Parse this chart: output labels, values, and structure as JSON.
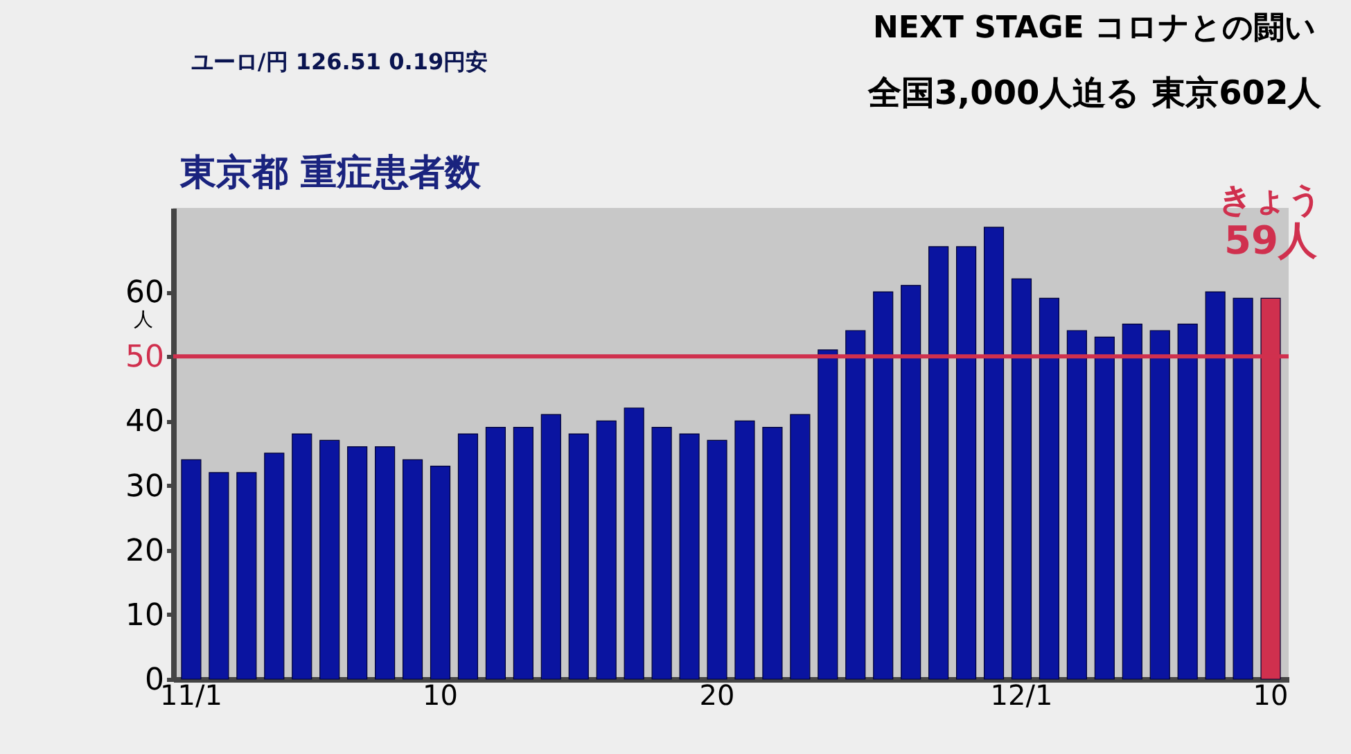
{
  "chart_data": {
    "type": "bar",
    "title": "東京都 重症患者数",
    "ylabel": "人",
    "categories": [
      "11/1",
      null,
      null,
      null,
      null,
      null,
      null,
      null,
      null,
      "10",
      null,
      null,
      null,
      null,
      null,
      null,
      null,
      null,
      null,
      "20",
      null,
      null,
      null,
      null,
      null,
      null,
      null,
      null,
      null,
      null,
      "12/1",
      null,
      null,
      null,
      null,
      null,
      null,
      null,
      null,
      "10"
    ],
    "values": [
      34,
      32,
      32,
      35,
      38,
      37,
      36,
      36,
      34,
      33,
      38,
      39,
      39,
      41,
      38,
      40,
      42,
      39,
      38,
      37,
      40,
      39,
      41,
      51,
      54,
      60,
      61,
      67,
      67,
      70,
      62,
      59,
      54,
      53,
      55,
      54,
      55,
      60,
      59,
      59
    ],
    "colors": [
      "#0a14a0",
      "#0a14a0",
      "#0a14a0",
      "#0a14a0",
      "#0a14a0",
      "#0a14a0",
      "#0a14a0",
      "#0a14a0",
      "#0a14a0",
      "#0a14a0",
      "#0a14a0",
      "#0a14a0",
      "#0a14a0",
      "#0a14a0",
      "#0a14a0",
      "#0a14a0",
      "#0a14a0",
      "#0a14a0",
      "#0a14a0",
      "#0a14a0",
      "#0a14a0",
      "#0a14a0",
      "#0a14a0",
      "#0a14a0",
      "#0a14a0",
      "#0a14a0",
      "#0a14a0",
      "#0a14a0",
      "#0a14a0",
      "#0a14a0",
      "#0a14a0",
      "#0a14a0",
      "#0a14a0",
      "#0a14a0",
      "#0a14a0",
      "#0a14a0",
      "#0a14a0",
      "#0a14a0",
      "#0a14a0",
      "#d0304e"
    ],
    "value_labels": [
      null,
      null,
      null,
      null,
      null,
      null,
      null,
      null,
      null,
      null,
      null,
      null,
      null,
      null,
      null,
      null,
      null,
      null,
      null,
      null,
      null,
      null,
      null,
      null,
      null,
      null,
      null,
      null,
      null,
      null,
      null,
      null,
      null,
      null,
      null,
      null,
      null,
      null,
      null,
      "59人"
    ],
    "ylim": [
      0,
      73
    ],
    "yticks": [
      0,
      10,
      20,
      30,
      40,
      50,
      60
    ],
    "ref_lines": [
      {
        "axis": "y",
        "value": 50,
        "label": null,
        "color": "#d0304e"
      }
    ],
    "grid": false,
    "annotations": [
      "きょう",
      "NEXT STAGE コロナとの闘い",
      "全国3,000人迫る 東京602人",
      "ユーロ/円 126.51 0.19円安"
    ]
  }
}
